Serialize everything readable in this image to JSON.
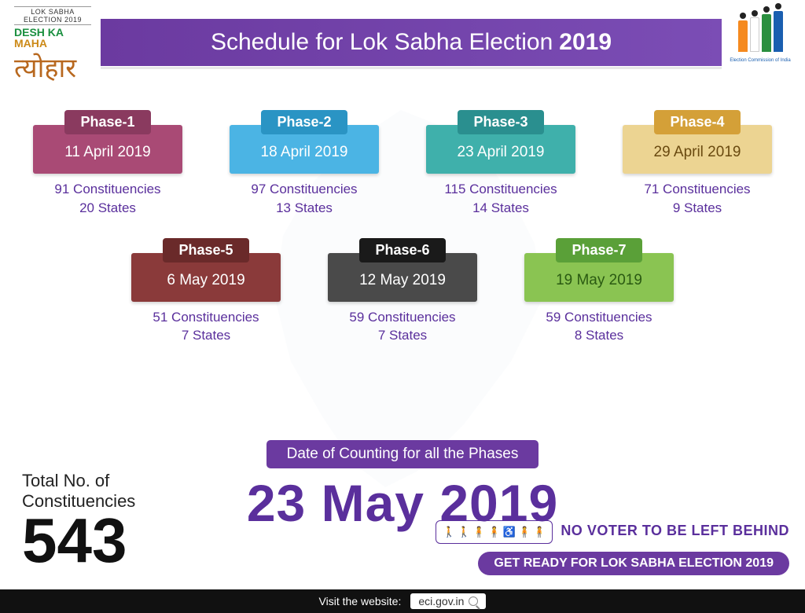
{
  "header": {
    "title_prefix": "Schedule for Lok Sabha Election",
    "title_year": "2019"
  },
  "logos": {
    "left_top": "LOK SABHA ELECTION 2019",
    "left_line1": "DESH KA",
    "left_line2": "MAHA",
    "left_script": "त्योहार",
    "right_caption": "Election Commission of India"
  },
  "phases": [
    {
      "label": "Phase-1",
      "date": "11 April 2019",
      "constituencies": "91 Constituencies",
      "states": "20 States",
      "pill_color": "#8a3a5f",
      "body_color": "#a94a75"
    },
    {
      "label": "Phase-2",
      "date": "18 April 2019",
      "constituencies": "97 Constituencies",
      "states": "13 States",
      "pill_color": "#2a94c4",
      "body_color": "#4bb4e4"
    },
    {
      "label": "Phase-3",
      "date": "23 April 2019",
      "constituencies": "115 Constituencies",
      "states": "14 States",
      "pill_color": "#2a8f8f",
      "body_color": "#3fb0ab"
    },
    {
      "label": "Phase-4",
      "date": "29 April 2019",
      "constituencies": "71 Constituencies",
      "states": "9 States",
      "pill_color": "#d4a038",
      "body_color": "#ecd492",
      "body_text": "#6a4a10"
    },
    {
      "label": "Phase-5",
      "date": "6 May 2019",
      "constituencies": "51 Constituencies",
      "states": "7 States",
      "pill_color": "#6a2a2a",
      "body_color": "#8a3a3a"
    },
    {
      "label": "Phase-6",
      "date": "12 May 2019",
      "constituencies": "59 Constituencies",
      "states": "7 States",
      "pill_color": "#1a1a1a",
      "body_color": "#4a4a4a"
    },
    {
      "label": "Phase-7",
      "date": "19 May 2019",
      "constituencies": "59 Constituencies",
      "states": "8 States",
      "pill_color": "#5aa038",
      "body_color": "#8ac452",
      "body_text": "#2a5a12"
    }
  ],
  "counting": {
    "label": "Date of Counting for all the Phases",
    "date": "23 May 2019"
  },
  "total": {
    "label_line1": "Total No. of",
    "label_line2": "Constituencies",
    "value": "543"
  },
  "slogan": {
    "icons": "♿",
    "text": "NO VOTER TO BE LEFT BEHIND"
  },
  "ready": "GET READY FOR LOK SABHA ELECTION 2019",
  "footer": {
    "prompt": "Visit the website:",
    "url": "eci.gov.in"
  },
  "style": {
    "accent": "#6b3aa0",
    "meta_text": "#5a2f9c",
    "background": "#ffffff"
  }
}
